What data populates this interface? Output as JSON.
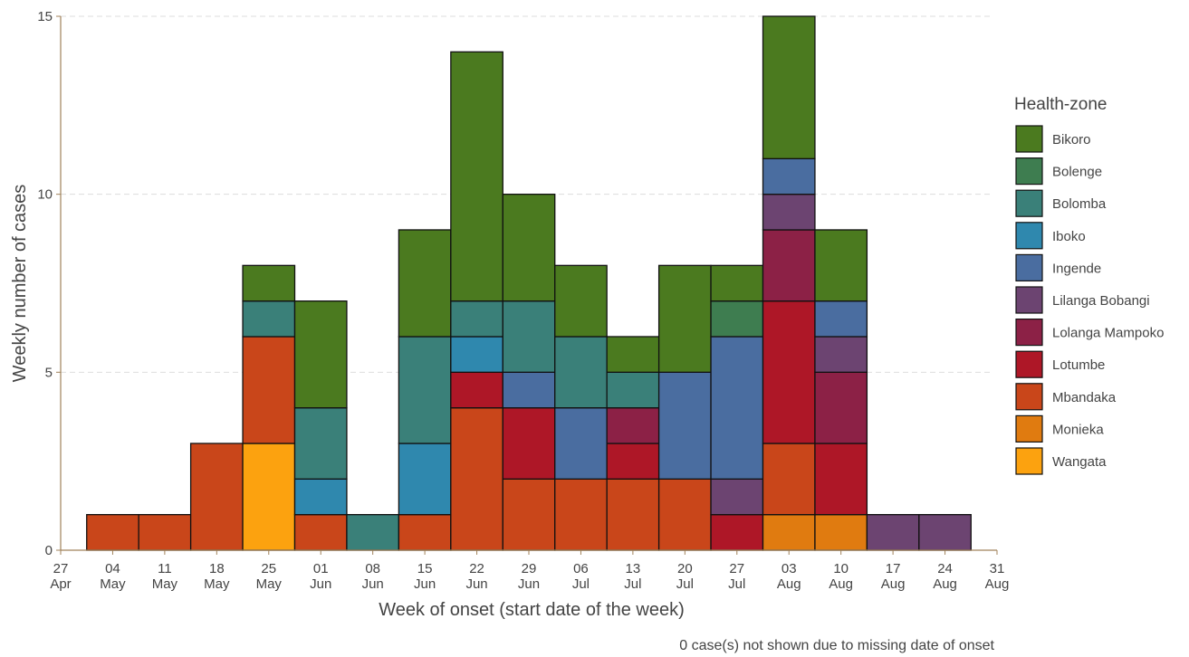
{
  "chart_data": {
    "type": "stacked_bar",
    "xlabel": "Week of onset (start date of the week)",
    "ylabel": "Weekly number of cases",
    "caption": "0 case(s) not shown due to missing date of onset",
    "legend_title": "Health-zone",
    "legend_position": "right",
    "grid": true,
    "categories": [
      "27 Apr",
      "04 May",
      "11 May",
      "18 May",
      "25 May",
      "01 Jun",
      "08 Jun",
      "15 Jun",
      "22 Jun",
      "29 Jun",
      "06 Jul",
      "13 Jul",
      "20 Jul",
      "27 Jul",
      "03 Aug",
      "10 Aug",
      "17 Aug",
      "24 Aug",
      "31 Aug"
    ],
    "ylim": [
      0,
      15
    ],
    "yticks": [
      0,
      5,
      10,
      15
    ],
    "series": [
      {
        "name": "Bikoro",
        "color": "#4b7a1f",
        "values": [
          0,
          0,
          0,
          0,
          1,
          3,
          0,
          3,
          7,
          3,
          2,
          1,
          3,
          1,
          4,
          2,
          0,
          0,
          0
        ]
      },
      {
        "name": "Bolenge",
        "color": "#3e7d50",
        "values": [
          0,
          0,
          0,
          0,
          0,
          0,
          0,
          0,
          0,
          0,
          0,
          0,
          0,
          1,
          0,
          0,
          0,
          0,
          0
        ]
      },
      {
        "name": "Bolomba",
        "color": "#3a8079",
        "values": [
          0,
          0,
          0,
          0,
          1,
          2,
          1,
          3,
          1,
          2,
          2,
          1,
          0,
          0,
          0,
          0,
          0,
          0,
          0
        ]
      },
      {
        "name": "Iboko",
        "color": "#2f88ae",
        "values": [
          0,
          0,
          0,
          0,
          0,
          1,
          0,
          2,
          1,
          0,
          0,
          0,
          0,
          0,
          0,
          0,
          0,
          0,
          0
        ]
      },
      {
        "name": "Ingende",
        "color": "#4a6da0",
        "values": [
          0,
          0,
          0,
          0,
          0,
          0,
          0,
          0,
          0,
          1,
          2,
          0,
          3,
          4,
          1,
          1,
          0,
          0,
          0
        ]
      },
      {
        "name": "Lilanga Bobangi",
        "color": "#6c4471",
        "values": [
          0,
          0,
          0,
          0,
          0,
          0,
          0,
          0,
          0,
          0,
          0,
          0,
          0,
          1,
          1,
          1,
          1,
          1,
          0
        ]
      },
      {
        "name": "Lolanga Mampoko",
        "color": "#8c2146",
        "values": [
          0,
          0,
          0,
          0,
          0,
          0,
          0,
          0,
          0,
          0,
          0,
          1,
          0,
          0,
          2,
          2,
          0,
          0,
          0
        ]
      },
      {
        "name": "Lotumbe",
        "color": "#ae1727",
        "values": [
          0,
          0,
          0,
          0,
          0,
          0,
          0,
          0,
          1,
          2,
          0,
          1,
          0,
          1,
          4,
          2,
          0,
          0,
          0
        ]
      },
      {
        "name": "Mbandaka",
        "color": "#c9461a",
        "values": [
          0,
          1,
          1,
          3,
          3,
          1,
          0,
          1,
          4,
          2,
          2,
          2,
          2,
          0,
          2,
          0,
          0,
          0,
          0
        ]
      },
      {
        "name": "Monieka",
        "color": "#e07b10",
        "values": [
          0,
          0,
          0,
          0,
          0,
          0,
          0,
          0,
          0,
          0,
          0,
          0,
          0,
          0,
          1,
          1,
          0,
          0,
          0
        ]
      },
      {
        "name": "Wangata",
        "color": "#fca20f",
        "values": [
          0,
          0,
          0,
          0,
          3,
          0,
          0,
          0,
          0,
          0,
          0,
          0,
          0,
          0,
          0,
          0,
          0,
          0,
          0
        ]
      }
    ]
  }
}
